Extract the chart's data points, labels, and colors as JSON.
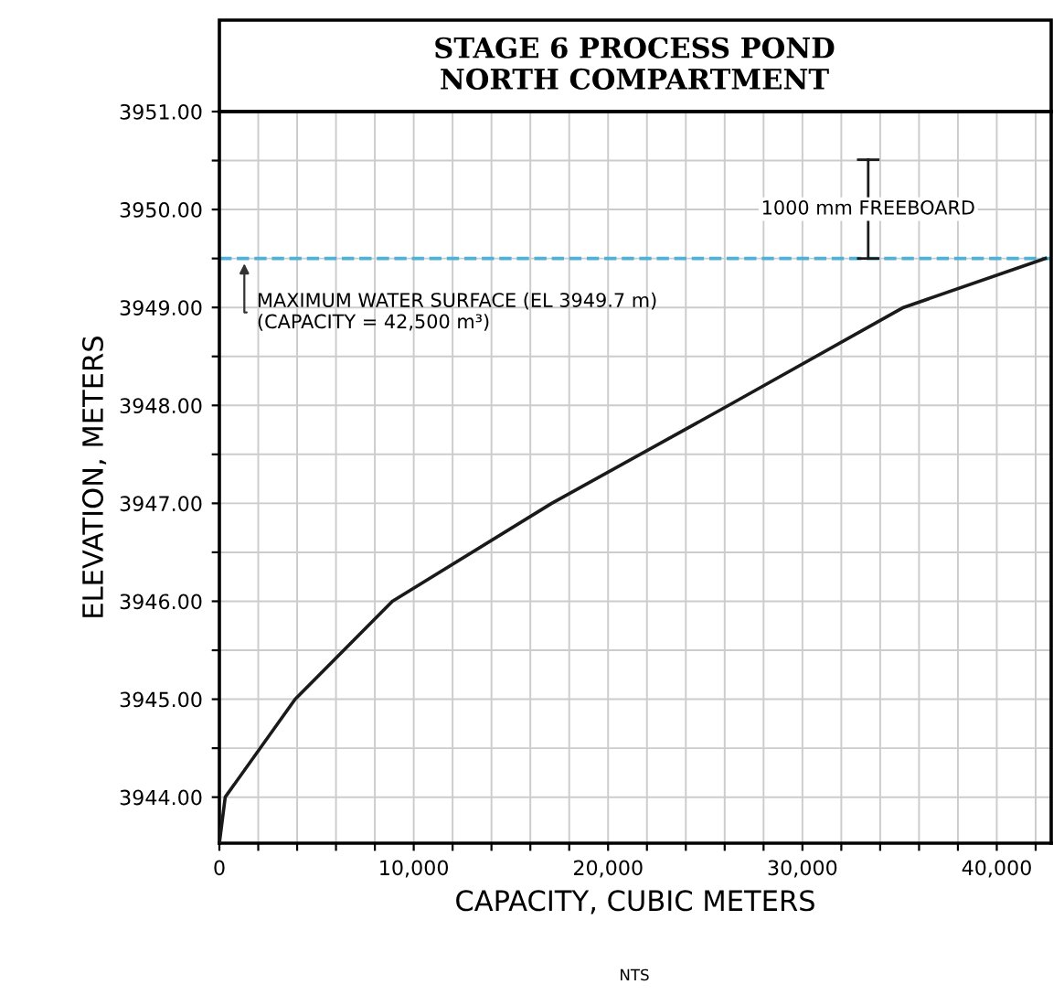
{
  "chart_data": {
    "type": "line",
    "title": "STAGE 6 PROCESS POND\nNORTH COMPARTMENT",
    "xlabel": "CAPACITY, CUBIC METERS",
    "ylabel": "ELEVATION, METERS",
    "x": [
      0,
      300,
      3900,
      8900,
      17100,
      26200,
      35200,
      42500
    ],
    "series": [
      {
        "color": "#1a1a1a",
        "values": [
          3943.53,
          3944.0,
          3945.0,
          3946.0,
          3947.0,
          3948.0,
          3949.0,
          3949.5
        ]
      }
    ],
    "xlim": [
      0,
      42800
    ],
    "ylim": [
      3943.53,
      3951.0
    ],
    "xticks": [
      0,
      {
        "value": 2000,
        "label": null
      },
      {
        "value": 4000,
        "label": null
      },
      {
        "value": 6000,
        "label": null
      },
      {
        "value": 8000,
        "label": null
      },
      {
        "value": 10000,
        "label": "10,000"
      },
      {
        "value": 12000,
        "label": null
      },
      {
        "value": 14000,
        "label": null
      },
      {
        "value": 16000,
        "label": null
      },
      {
        "value": 18000,
        "label": null
      },
      {
        "value": 20000,
        "label": "20,000"
      },
      {
        "value": 22000,
        "label": null
      },
      {
        "value": 24000,
        "label": null
      },
      {
        "value": 26000,
        "label": null
      },
      {
        "value": 28000,
        "label": null
      },
      {
        "value": 30000,
        "label": "30,000"
      },
      {
        "value": 32000,
        "label": null
      },
      {
        "value": 34000,
        "label": null
      },
      {
        "value": 36000,
        "label": null
      },
      {
        "value": 38000,
        "label": null
      },
      {
        "value": 40000,
        "label": "40,000"
      },
      {
        "value": 42000,
        "label": null
      }
    ],
    "yticks": [
      {
        "value": 3944,
        "label": "3944.00"
      },
      {
        "value": 3944.5,
        "label": null
      },
      {
        "value": 3945,
        "label": "3945.00"
      },
      {
        "value": 3945.5,
        "label": null
      },
      {
        "value": 3946,
        "label": "3946.00"
      },
      {
        "value": 3946.5,
        "label": null
      },
      {
        "value": 3947,
        "label": "3947.00"
      },
      {
        "value": 3947.5,
        "label": null
      },
      {
        "value": 3948,
        "label": "3948.00"
      },
      {
        "value": 3948.5,
        "label": null
      },
      {
        "value": 3949,
        "label": "3949.00"
      },
      {
        "value": 3949.5,
        "label": null
      },
      {
        "value": 3950,
        "label": "3950.00"
      },
      {
        "value": 3950.5,
        "label": null
      },
      {
        "value": 3951,
        "label": "3951.00"
      }
    ],
    "grid": true,
    "marker": "none",
    "line_style": "solid",
    "ref_lines": [
      {
        "axis": "y",
        "value": 3949.5,
        "color": "#4fb0d8",
        "line_style": "dashed"
      }
    ],
    "annotations": [
      "1000 mm FREEBOARD",
      "MAXIMUM WATER SURFACE (EL 3949.7 m)\n(CAPACITY = 42,500 m³)",
      "NTS"
    ]
  }
}
